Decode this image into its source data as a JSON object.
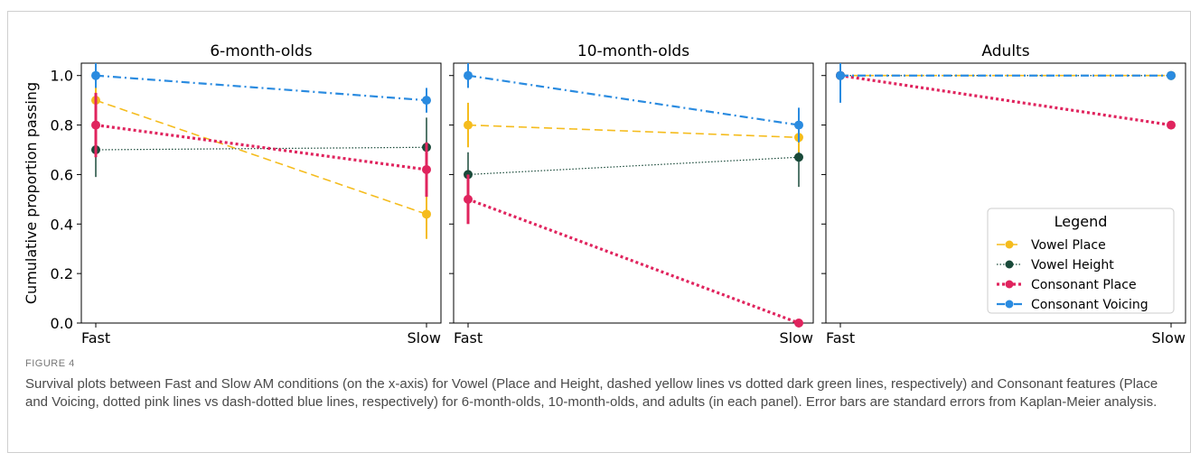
{
  "figure": {
    "label": "FIGURE 4",
    "caption": "Survival plots between Fast and Slow AM conditions (on the x-axis) for Vowel (Place and Height, dashed yellow lines vs dotted dark green lines, respectively) and Consonant features (Place and Voicing, dotted pink lines vs dash-dotted blue lines, respectively) for 6-month-olds, 10-month-olds, and adults (in each panel). Error bars are standard errors from Kaplan-Meier analysis."
  },
  "colors": {
    "vowel_place": "#f5bc1d",
    "vowel_height": "#1a4a3a",
    "consonant_place": "#e0245e",
    "consonant_voicing": "#2a8be0"
  },
  "chart_data": [
    {
      "type": "line",
      "title": "6-month-olds",
      "categories": [
        "Fast",
        "Slow"
      ],
      "ylabel": "Cumulative proportion passing",
      "ylim": [
        0,
        1.05
      ],
      "yticks": [
        "0.0",
        "0.2",
        "0.4",
        "0.6",
        "0.8",
        "1.0"
      ],
      "series": [
        {
          "name": "Vowel Place",
          "values": [
            0.9,
            0.44
          ],
          "errors": [
            0.1,
            0.1
          ]
        },
        {
          "name": "Vowel Height",
          "values": [
            0.7,
            0.71
          ],
          "errors": [
            0.11,
            0.12
          ]
        },
        {
          "name": "Consonant Place",
          "values": [
            0.8,
            0.62
          ],
          "errors": [
            0.13,
            0.11
          ]
        },
        {
          "name": "Consonant Voicing",
          "values": [
            1.0,
            0.9
          ],
          "errors": [
            0.05,
            0.05
          ]
        }
      ]
    },
    {
      "type": "line",
      "title": "10-month-olds",
      "categories": [
        "Fast",
        "Slow"
      ],
      "ylim": [
        0,
        1.05
      ],
      "series": [
        {
          "name": "Vowel Place",
          "values": [
            0.8,
            0.75
          ],
          "errors": [
            0.09,
            0.06
          ]
        },
        {
          "name": "Vowel Height",
          "values": [
            0.6,
            0.67
          ],
          "errors": [
            0.09,
            0.12
          ]
        },
        {
          "name": "Consonant Place",
          "values": [
            0.5,
            0.0
          ],
          "errors": [
            0.1,
            0.0
          ]
        },
        {
          "name": "Consonant Voicing",
          "values": [
            1.0,
            0.8
          ],
          "errors": [
            0.05,
            0.07
          ]
        }
      ]
    },
    {
      "type": "line",
      "title": "Adults",
      "categories": [
        "Fast",
        "Slow"
      ],
      "ylim": [
        0,
        1.05
      ],
      "legend": {
        "title": "Legend",
        "position": "lower-right"
      },
      "series": [
        {
          "name": "Vowel Place",
          "values": [
            1.0,
            1.0
          ],
          "errors": [
            0.0,
            0.0
          ]
        },
        {
          "name": "Vowel Height",
          "values": [
            1.0,
            1.0
          ],
          "errors": [
            0.0,
            0.0
          ]
        },
        {
          "name": "Consonant Place",
          "values": [
            1.0,
            0.8
          ],
          "errors": [
            0.0,
            0.0
          ]
        },
        {
          "name": "Consonant Voicing",
          "values": [
            1.0,
            1.0
          ],
          "errors": [
            0.11,
            0.0
          ]
        }
      ]
    }
  ]
}
